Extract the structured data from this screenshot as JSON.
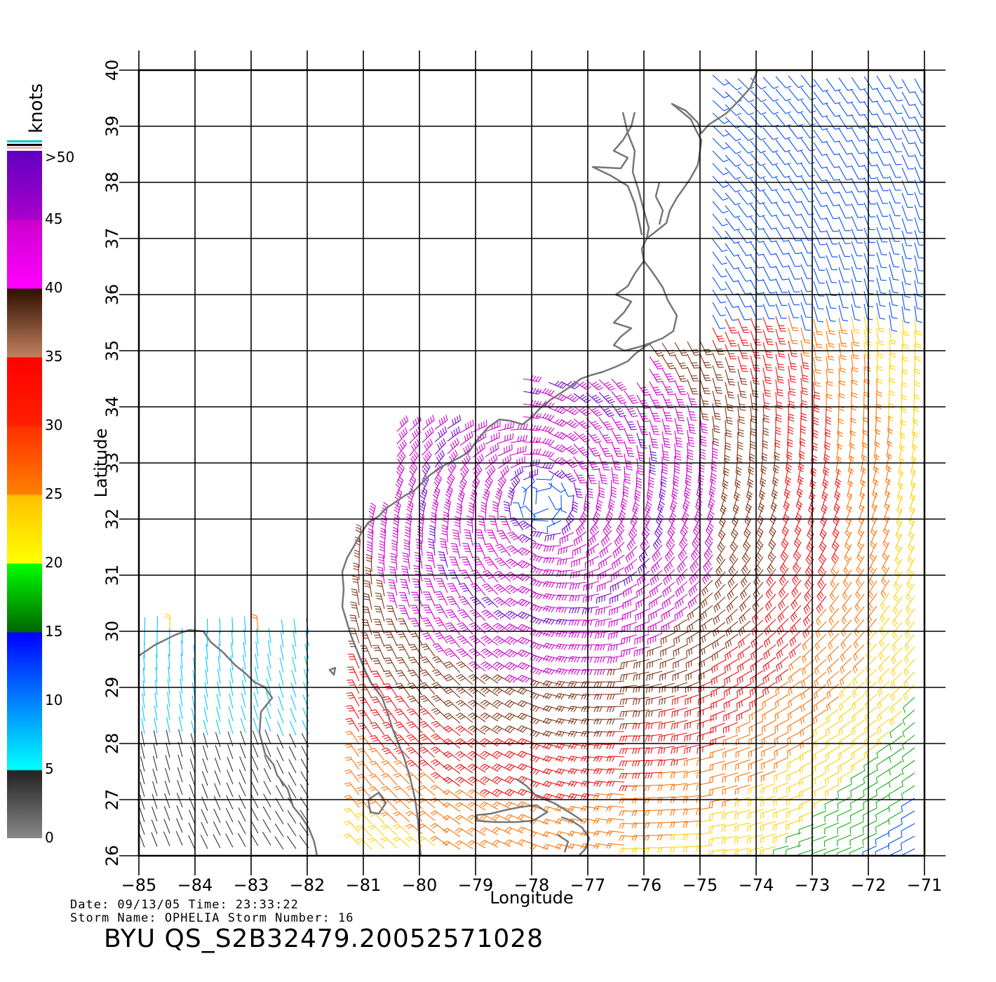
{
  "map": {
    "lon_range": [
      -85,
      -71
    ],
    "lat_range": [
      26,
      40
    ],
    "x_label": "Longitude",
    "y_label": "Latitude",
    "x_ticks": [
      "−85",
      "−84",
      "−83",
      "−82",
      "−81",
      "−80",
      "−79",
      "−78",
      "−77",
      "−76",
      "−75",
      "−74",
      "−73",
      "−72",
      "−71"
    ],
    "y_ticks": [
      "26",
      "27",
      "28",
      "29",
      "30",
      "31",
      "32",
      "33",
      "34",
      "35",
      "36",
      "37",
      "38",
      "39",
      "40"
    ],
    "grid": true,
    "coastline_color": "#777777",
    "storm_center": {
      "lon": -77.8,
      "lat": 32.3
    }
  },
  "colorbar": {
    "unit": "knots",
    "labels": [
      ">50",
      "45",
      "40",
      "35",
      "30",
      "25",
      "20",
      "15",
      "10",
      "5",
      "0"
    ],
    "stops": [
      {
        "from": 0,
        "to": 5,
        "colors": [
          "#888888",
          "#222222"
        ]
      },
      {
        "from": 5,
        "to": 10,
        "colors": [
          "#00ffff",
          "#0088ff"
        ]
      },
      {
        "from": 10,
        "to": 15,
        "colors": [
          "#0088ff",
          "#0000ff"
        ]
      },
      {
        "from": 15,
        "to": 20,
        "colors": [
          "#006600",
          "#00ff00"
        ]
      },
      {
        "from": 20,
        "to": 25,
        "colors": [
          "#ffff00",
          "#ffc000"
        ]
      },
      {
        "from": 25,
        "to": 30,
        "colors": [
          "#ff8000",
          "#ff2000"
        ]
      },
      {
        "from": 30,
        "to": 35,
        "colors": [
          "#ff3000",
          "#ff0000"
        ]
      },
      {
        "from": 35,
        "to": 40,
        "colors": [
          "#c08060",
          "#301000"
        ]
      },
      {
        "from": 40,
        "to": 45,
        "colors": [
          "#ff00ff",
          "#cc00cc"
        ]
      },
      {
        "from": 45,
        "to": 50,
        "colors": [
          "#aa00cc",
          "#6000c0"
        ]
      }
    ]
  },
  "footer": {
    "line1": "Date: 09/13/05  Time: 23:33:22",
    "line2": "Storm Name: OPHELIA   Storm Number: 16",
    "title": "BYU QS_S2B32479.20052571028"
  }
}
